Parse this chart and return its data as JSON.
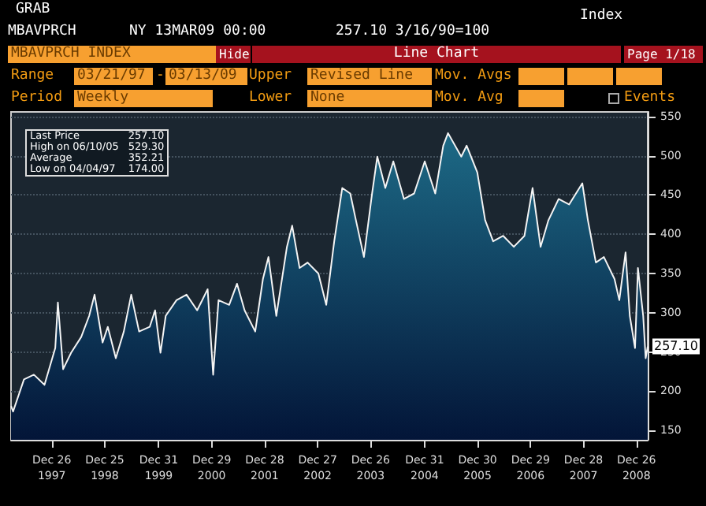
{
  "chart_data": {
    "type": "area",
    "annotations": [
      "GRAB",
      "Index",
      "MBAVPRCH",
      "NY 13MAR09 00:00",
      "257.10 3/16/90=100",
      "MBAVPRCH INDEX",
      "Hide",
      "Line Chart",
      "Page 1/18",
      "Range",
      "03/21/97",
      "-",
      "03/13/09",
      "Upper",
      "Revised Line",
      "Mov. Avgs",
      "Period",
      "Weekly",
      "Lower",
      "None",
      "Mov. Avg",
      "Events",
      "Last Price",
      "257.10",
      "High on 06/10/05",
      "529.30",
      "Average",
      "352.21",
      "Low on 04/04/97",
      "174.00",
      {
        "text": "257.10",
        "x": "2009-03-13",
        "y": 257.1
      }
    ],
    "x": [
      "1997-03-21",
      "1997-04-04",
      "1997-06-18",
      "1997-08-25",
      "1997-11-06",
      "1998-01-19",
      "1998-02-06",
      "1998-03-14",
      "1998-05-08",
      "1998-07-16",
      "1998-09-09",
      "1998-10-16",
      "1998-12-10",
      "1999-01-15",
      "1999-03-11",
      "1999-05-05",
      "1999-06-25",
      "1999-08-18",
      "1999-10-30",
      "1999-12-06",
      "2000-01-12",
      "2000-02-17",
      "2000-05-01",
      "2000-07-09",
      "2000-09-20",
      "2000-12-01",
      "2001-01-08",
      "2001-02-14",
      "2001-04-28",
      "2001-06-21",
      "2001-08-12",
      "2001-10-24",
      "2001-12-16",
      "2002-01-23",
      "2002-03-18",
      "2002-05-30",
      "2002-07-05",
      "2002-08-25",
      "2002-10-19",
      "2003-01-01",
      "2003-02-24",
      "2003-04-20",
      "2003-06-14",
      "2003-08-08",
      "2003-09-16",
      "2003-11-10",
      "2004-01-05",
      "2004-02-10",
      "2004-04-05",
      "2004-05-30",
      "2004-08-11",
      "2004-10-20",
      "2005-01-01",
      "2005-03-14",
      "2005-05-08",
      "2005-06-10",
      "2005-09-09",
      "2005-10-16",
      "2005-12-28",
      "2006-02-20",
      "2006-04-16",
      "2006-06-24",
      "2006-09-05",
      "2006-11-17",
      "2007-01-12",
      "2007-03-08",
      "2007-05-01",
      "2007-07-10",
      "2007-09-20",
      "2007-12-20",
      "2008-01-27",
      "2008-03-22",
      "2008-05-16",
      "2008-07-28",
      "2008-08-30",
      "2008-10-12",
      "2008-11-10",
      "2008-12-16",
      "2009-01-05",
      "2009-02-10",
      "2009-02-27",
      "2009-03-13"
    ],
    "series": [
      {
        "color": "#1d6a86",
        "values": [
          181,
          174,
          215,
          221,
          208,
          255,
          313,
          228,
          249,
          269,
          296,
          323,
          262,
          282,
          242,
          276,
          323,
          276,
          282,
          303,
          249,
          296,
          316,
          323,
          303,
          330,
          221,
          316,
          310,
          337,
          303,
          276,
          343,
          371,
          296,
          384,
          411,
          357,
          364,
          350,
          310,
          391,
          459,
          452,
          418,
          371,
          452,
          499,
          459,
          493,
          445,
          452,
          493,
          452,
          513,
          529,
          499,
          513,
          479,
          418,
          391,
          398,
          384,
          398,
          459,
          384,
          418,
          445,
          438,
          465,
          418,
          364,
          371,
          343,
          316,
          377,
          296,
          255,
          357,
          296,
          242,
          257
        ]
      }
    ],
    "xlim": [
      "1997-03-21",
      "2009-03-13"
    ],
    "xticks": [
      {
        "value": "1997-12-26",
        "label": "Dec 26\n1997"
      },
      {
        "value": "1998-12-25",
        "label": "Dec 25\n1998"
      },
      {
        "value": "1999-12-31",
        "label": "Dec 31\n1999"
      },
      {
        "value": "2000-12-29",
        "label": "Dec 29\n2000"
      },
      {
        "value": "2001-12-28",
        "label": "Dec 28\n2001"
      },
      {
        "value": "2002-12-27",
        "label": "Dec 27\n2002"
      },
      {
        "value": "2003-12-26",
        "label": "Dec 26\n2003"
      },
      {
        "value": "2004-12-31",
        "label": "Dec 31\n2004"
      },
      {
        "value": "2005-12-30",
        "label": "Dec 30\n2005"
      },
      {
        "value": "2006-12-29",
        "label": "Dec 29\n2006"
      },
      {
        "value": "2007-12-28",
        "label": "Dec 28\n2007"
      },
      {
        "value": "2008-12-26",
        "label": "Dec 26\n2008"
      }
    ],
    "ylim": [
      138,
      556
    ],
    "yticks": [
      150,
      200,
      250,
      300,
      350,
      400,
      450,
      500,
      550
    ],
    "grid": "y"
  }
}
